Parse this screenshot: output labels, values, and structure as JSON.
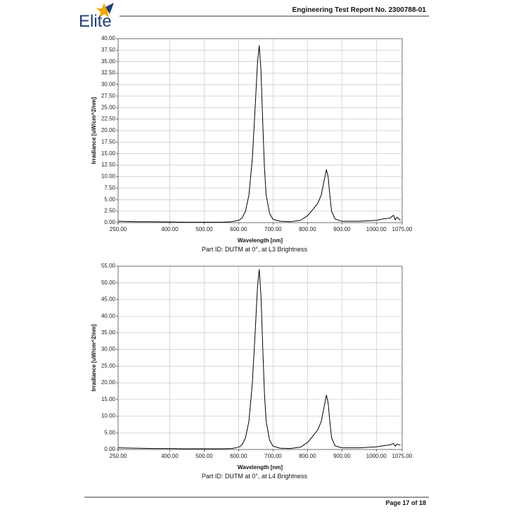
{
  "header": {
    "logo": "Elite",
    "title": "Engineering Test Report No. 2300788-01"
  },
  "footer": {
    "page": "Page 17 of 18"
  },
  "chart_data": [
    {
      "type": "line",
      "title": "Part ID: DUTM at 0°, at L3 Brightness",
      "x_label": "Wavelength [nm]",
      "y_label": "Irradiance [uW/cm^2/nm]",
      "xlim": [
        250,
        1075
      ],
      "ylim": [
        0,
        40
      ],
      "grid": true,
      "xticks": [
        {
          "value": 250,
          "label": "250.00"
        },
        {
          "value": 400,
          "label": "400.00"
        },
        {
          "value": 500,
          "label": "500.00"
        },
        {
          "value": 600,
          "label": "600.00"
        },
        {
          "value": 700,
          "label": "700.00"
        },
        {
          "value": 800,
          "label": "800.00"
        },
        {
          "value": 900,
          "label": "900.00"
        },
        {
          "value": 1000,
          "label": "1000.00"
        },
        {
          "value": 1075,
          "label": "1075.00"
        }
      ],
      "yticks": [
        {
          "value": 0,
          "label": "0.00"
        },
        {
          "value": 2.5,
          "label": "2.50"
        },
        {
          "value": 5,
          "label": "5.00"
        },
        {
          "value": 7.5,
          "label": "7.50"
        },
        {
          "value": 10,
          "label": "10.00"
        },
        {
          "value": 12.5,
          "label": "12.50"
        },
        {
          "value": 15,
          "label": "15.00"
        },
        {
          "value": 17.5,
          "label": "17.50"
        },
        {
          "value": 20,
          "label": "20.00"
        },
        {
          "value": 22.5,
          "label": "22.50"
        },
        {
          "value": 25,
          "label": "25.00"
        },
        {
          "value": 27.5,
          "label": "27.50"
        },
        {
          "value": 30,
          "label": "30.00"
        },
        {
          "value": 32.5,
          "label": "32.50"
        },
        {
          "value": 35,
          "label": "35.00"
        },
        {
          "value": 37.5,
          "label": "37.50"
        },
        {
          "value": 40,
          "label": "40.00"
        }
      ],
      "color": "#000000",
      "x": [
        250,
        300,
        350,
        400,
        450,
        500,
        550,
        580,
        600,
        610,
        620,
        630,
        640,
        648,
        655,
        660,
        665,
        670,
        675,
        680,
        690,
        700,
        720,
        750,
        780,
        800,
        815,
        830,
        840,
        848,
        855,
        860,
        865,
        870,
        880,
        900,
        950,
        1000,
        1020,
        1040,
        1050,
        1055,
        1060,
        1070
      ],
      "values": [
        0.3,
        0.2,
        0.2,
        0.15,
        0.1,
        0.1,
        0.1,
        0.2,
        0.5,
        1.0,
        2.5,
        6,
        14,
        25,
        35,
        38.5,
        33,
        22,
        12,
        6,
        2,
        0.7,
        0.3,
        0.2,
        0.5,
        1.5,
        2.8,
        4.2,
        6,
        9,
        11.5,
        10,
        6,
        2.5,
        0.8,
        0.3,
        0.3,
        0.5,
        0.8,
        1.0,
        1.6,
        0.6,
        1.2,
        0.5
      ]
    },
    {
      "type": "line",
      "title": "Part ID: DUTM at 0°, at L4 Brightness",
      "x_label": "Wavelength [nm]",
      "y_label": "Irradiance [uW/cm^2/nm]",
      "xlim": [
        250,
        1075
      ],
      "ylim": [
        0,
        55
      ],
      "grid": true,
      "xticks": [
        {
          "value": 250,
          "label": "250.00"
        },
        {
          "value": 400,
          "label": "400.00"
        },
        {
          "value": 500,
          "label": "500.00"
        },
        {
          "value": 600,
          "label": "600.00"
        },
        {
          "value": 700,
          "label": "700.00"
        },
        {
          "value": 800,
          "label": "800.00"
        },
        {
          "value": 900,
          "label": "900.00"
        },
        {
          "value": 1000,
          "label": "1000.00"
        },
        {
          "value": 1075,
          "label": "1075.00"
        }
      ],
      "yticks": [
        {
          "value": 0,
          "label": "0.00"
        },
        {
          "value": 5,
          "label": "5.00"
        },
        {
          "value": 10,
          "label": "10.00"
        },
        {
          "value": 15,
          "label": "15.00"
        },
        {
          "value": 20,
          "label": "20.00"
        },
        {
          "value": 25,
          "label": "25.00"
        },
        {
          "value": 30,
          "label": "30.00"
        },
        {
          "value": 35,
          "label": "35.00"
        },
        {
          "value": 40,
          "label": "40.00"
        },
        {
          "value": 45,
          "label": "45.00"
        },
        {
          "value": 50,
          "label": "50.00"
        },
        {
          "value": 55,
          "label": "55.00"
        }
      ],
      "color": "#000000",
      "x": [
        250,
        300,
        350,
        400,
        450,
        500,
        550,
        580,
        600,
        610,
        620,
        630,
        640,
        648,
        655,
        660,
        665,
        670,
        675,
        680,
        690,
        700,
        720,
        750,
        780,
        800,
        815,
        830,
        840,
        848,
        855,
        860,
        865,
        870,
        880,
        900,
        950,
        1000,
        1020,
        1040,
        1050,
        1055,
        1060,
        1070
      ],
      "values": [
        0.5,
        0.4,
        0.3,
        0.3,
        0.2,
        0.2,
        0.2,
        0.3,
        0.7,
        1.4,
        3.5,
        8.5,
        20,
        35,
        49,
        54,
        46,
        31,
        17,
        8.5,
        2.8,
        1.0,
        0.4,
        0.3,
        0.7,
        2.1,
        3.9,
        5.9,
        8.4,
        12.6,
        16.3,
        14,
        8.4,
        3.5,
        1.1,
        0.5,
        0.5,
        0.8,
        1.1,
        1.4,
        1.8,
        1.0,
        1.6,
        1.3
      ]
    }
  ]
}
